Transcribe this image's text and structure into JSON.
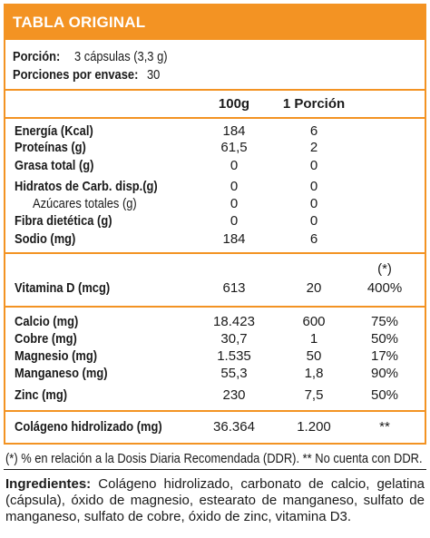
{
  "header": {
    "title": "TABLA ORIGINAL"
  },
  "serving": {
    "portion_label": "Porción:",
    "portion_value": "3 cápsulas (3,3 g)",
    "per_pack_label": "Porciones por envase:",
    "per_pack_value": "30"
  },
  "columns": {
    "col1": "100g",
    "col2": "1 Porción"
  },
  "group1": [
    {
      "name": "Energía (Kcal)",
      "v100": "184",
      "vportion": "6"
    },
    {
      "name": "Proteínas (g)",
      "v100": "61,5",
      "vportion": "2"
    },
    {
      "name": "Grasa total (g)",
      "v100": "0",
      "vportion": "0"
    },
    {
      "name": "Hidratos de Carb. disp.(g)",
      "v100": "0",
      "vportion": "0"
    },
    {
      "name": "Azúcares totales (g)",
      "v100": "0",
      "vportion": "0"
    },
    {
      "name": "Fibra dietética (g)",
      "v100": "0",
      "vportion": "0"
    },
    {
      "name": "Sodio (mg)",
      "v100": "184",
      "vportion": "6"
    }
  ],
  "vitamin": {
    "ddr_marker": "(*)",
    "name": "Vitamina D (mcg)",
    "v100": "613",
    "vportion": "20",
    "ddr": "400%"
  },
  "minerals": [
    {
      "name": "Calcio (mg)",
      "v100": "18.423",
      "vportion": "600",
      "ddr": "75%"
    },
    {
      "name": "Cobre (mg)",
      "v100": "30,7",
      "vportion": "1",
      "ddr": "50%"
    },
    {
      "name": "Magnesio (mg)",
      "v100": "1.535",
      "vportion": "50",
      "ddr": "17%"
    },
    {
      "name": "Manganeso (mg)",
      "v100": "55,3",
      "vportion": "1,8",
      "ddr": "90%"
    },
    {
      "name": "Zinc (mg)",
      "v100": "230",
      "vportion": "7,5",
      "ddr": "50%"
    }
  ],
  "collagen": {
    "name": "Colágeno hidrolizado (mg)",
    "v100": "36.364",
    "vportion": "1.200",
    "ddr": "**"
  },
  "footnote": "(*) % en relación a la Dosis Diaria Recomendada (DDR). ** No cuenta con DDR.",
  "ingredients": {
    "label": "Ingredientes:",
    "text": "Colágeno hidrolizado, carbonato de calcio, gelatina (cápsula), óxido de magnesio, estearato de manganeso, sulfato de manganeso, sulfato de cobre, óxido de zinc, vitamina D3."
  },
  "colors": {
    "accent": "#f39323"
  }
}
